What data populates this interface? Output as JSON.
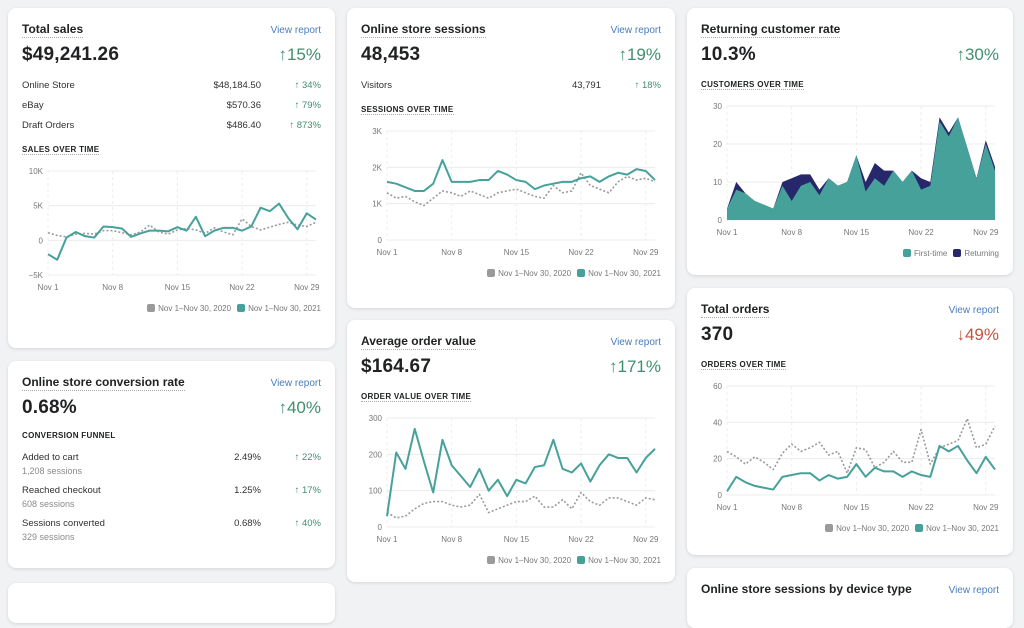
{
  "colors": {
    "primary": "#47a19b",
    "comparison": "#9a9a9a",
    "returning": "#27276b",
    "up": "#3f8f6f",
    "down": "#c2543f",
    "link": "#4a7dbd"
  },
  "legend_2020": "Nov 1–Nov 30, 2020",
  "legend_2021": "Nov 1–Nov 30, 2021",
  "x_ticks": [
    "Nov 1",
    "Nov 8",
    "Nov 15",
    "Nov 22",
    "Nov 29"
  ],
  "total_sales": {
    "title": "Total sales",
    "link": "View report",
    "value": "$49,241.26",
    "change": "↑15%",
    "rows": [
      {
        "label": "Online Store",
        "value": "$48,184.50",
        "change": "↑ 34%"
      },
      {
        "label": "eBay",
        "value": "$570.36",
        "change": "↑ 79%"
      },
      {
        "label": "Draft Orders",
        "value": "$486.40",
        "change": "↑ 873%"
      }
    ],
    "section": "SALES OVER TIME"
  },
  "conversion": {
    "title": "Online store conversion rate",
    "link": "View report",
    "value": "0.68%",
    "change": "↑40%",
    "section": "CONVERSION FUNNEL",
    "rows": [
      {
        "label": "Added to cart",
        "sub": "1,208 sessions",
        "value": "2.49%",
        "change": "↑ 22%"
      },
      {
        "label": "Reached checkout",
        "sub": "608 sessions",
        "value": "1.25%",
        "change": "↑ 17%"
      },
      {
        "label": "Sessions converted",
        "sub": "329 sessions",
        "value": "0.68%",
        "change": "↑ 40%"
      }
    ]
  },
  "sessions": {
    "title": "Online store sessions",
    "link": "View report",
    "value": "48,453",
    "change": "↑19%",
    "rows": [
      {
        "label": "Visitors",
        "value": "43,791",
        "change": "↑ 18%"
      }
    ],
    "section": "SESSIONS OVER TIME"
  },
  "aov": {
    "title": "Average order value",
    "link": "View report",
    "value": "$164.67",
    "change": "↑171%",
    "section": "ORDER VALUE OVER TIME"
  },
  "returning": {
    "title": "Returning customer rate",
    "value": "10.3%",
    "change": "↑30%",
    "section": "CUSTOMERS OVER TIME",
    "legend_first": "First-time",
    "legend_returning": "Returning"
  },
  "orders": {
    "title": "Total orders",
    "link": "View report",
    "value": "370",
    "change": "↓49%",
    "section": "ORDERS OVER TIME"
  },
  "device": {
    "title": "Online store sessions by device type",
    "link": "View report"
  },
  "chart_data": [
    {
      "id": "sales",
      "type": "line",
      "ylim": [
        -5,
        10
      ],
      "yticks": [
        "−5K",
        "0",
        "5K",
        "10K"
      ],
      "ytick_values": [
        -5,
        0,
        5,
        10
      ],
      "unit": "K",
      "series": [
        {
          "name": "Nov 1–Nov 30, 2020",
          "dashed": true,
          "values": [
            1.1,
            0.7,
            0.5,
            0.9,
            1,
            0.9,
            1.4,
            1.4,
            1.1,
            0.8,
            1.2,
            2.2,
            1.2,
            0.9,
            1.5,
            1.7,
            1.5,
            1,
            1.8,
            1.2,
            0.8,
            3.1,
            2,
            1.5,
            1.9,
            2.3,
            2.6,
            2.2,
            2,
            2.6
          ]
        },
        {
          "name": "Nov 1–Nov 30, 2021",
          "values": [
            -2,
            -2.8,
            0.4,
            1.2,
            0.6,
            0.4,
            2,
            1.9,
            1.7,
            0.5,
            1,
            1.4,
            1.4,
            1.3,
            1.9,
            1.4,
            3.4,
            0.6,
            1.4,
            1.8,
            1.8,
            1.4,
            2,
            4.7,
            4.2,
            5.3,
            3.2,
            1.6,
            3.9,
            3
          ]
        }
      ]
    },
    {
      "id": "sessions",
      "type": "line",
      "ylim": [
        0,
        3
      ],
      "yticks": [
        "0",
        "1K",
        "2K",
        "3K"
      ],
      "ytick_values": [
        0,
        1,
        2,
        3
      ],
      "unit": "K",
      "series": [
        {
          "name": "Nov 1–Nov 30, 2020",
          "dashed": true,
          "values": [
            1.3,
            1.15,
            1.2,
            1.05,
            0.95,
            1.15,
            1.35,
            1.3,
            1.2,
            1.35,
            1.25,
            1.15,
            1.3,
            1.35,
            1.4,
            1.3,
            1.2,
            1.15,
            1.5,
            1.3,
            1.35,
            1.85,
            1.5,
            1.4,
            1.3,
            1.6,
            1.75,
            1.65,
            1.7,
            1.6
          ]
        },
        {
          "name": "Nov 1–Nov 30, 2021",
          "values": [
            1.6,
            1.55,
            1.45,
            1.35,
            1.35,
            1.55,
            2.2,
            1.6,
            1.6,
            1.6,
            1.65,
            1.65,
            1.9,
            1.8,
            1.65,
            1.6,
            1.4,
            1.5,
            1.55,
            1.6,
            1.6,
            1.7,
            1.75,
            1.6,
            1.75,
            1.85,
            1.8,
            1.95,
            1.9,
            1.65
          ]
        }
      ]
    },
    {
      "id": "aov",
      "type": "line",
      "ylim": [
        0,
        300
      ],
      "yticks": [
        "0",
        "100",
        "200",
        "300"
      ],
      "ytick_values": [
        0,
        100,
        200,
        300
      ],
      "series": [
        {
          "name": "Nov 1–Nov 30, 2020",
          "dashed": true,
          "values": [
            40,
            25,
            30,
            50,
            65,
            70,
            70,
            60,
            55,
            60,
            90,
            40,
            50,
            60,
            70,
            70,
            85,
            55,
            55,
            75,
            50,
            95,
            70,
            60,
            80,
            80,
            70,
            60,
            80,
            75
          ]
        },
        {
          "name": "Nov 1–Nov 30, 2021",
          "values": [
            30,
            205,
            160,
            270,
            180,
            95,
            240,
            170,
            140,
            110,
            160,
            100,
            130,
            85,
            130,
            120,
            165,
            170,
            240,
            160,
            150,
            175,
            125,
            170,
            200,
            190,
            190,
            150,
            190,
            215
          ]
        }
      ]
    },
    {
      "id": "customers",
      "type": "area",
      "stacked": true,
      "ylim": [
        0,
        30
      ],
      "yticks": [
        "0",
        "10",
        "20",
        "30"
      ],
      "ytick_values": [
        0,
        10,
        20,
        30
      ],
      "series": [
        {
          "name": "First-time",
          "values": [
            3,
            8,
            7,
            5,
            4,
            3,
            9,
            5,
            9,
            10,
            6.5,
            11,
            9,
            10,
            17,
            7.5,
            11,
            9,
            13,
            10,
            13,
            8,
            9,
            26,
            22,
            27,
            19,
            11,
            20,
            13
          ]
        },
        {
          "name": "Returning",
          "values": [
            0,
            2,
            0,
            0,
            0,
            0,
            1,
            6,
            3,
            2,
            1.5,
            0,
            0,
            0,
            0,
            2.5,
            4,
            4,
            0,
            0,
            0,
            3,
            1,
            1,
            1,
            0,
            0,
            0,
            1,
            1
          ]
        }
      ]
    },
    {
      "id": "orders",
      "type": "line",
      "ylim": [
        0,
        60
      ],
      "yticks": [
        "0",
        "20",
        "40",
        "60"
      ],
      "ytick_values": [
        0,
        20,
        40,
        60
      ],
      "series": [
        {
          "name": "Nov 1–Nov 30, 2020",
          "dashed": true,
          "values": [
            24,
            21,
            17,
            21,
            18,
            14,
            23,
            28,
            24,
            26,
            29,
            22,
            24,
            12,
            26,
            25,
            15,
            18,
            24,
            18,
            18,
            36,
            17,
            26,
            28,
            30,
            42,
            26,
            28,
            38
          ]
        },
        {
          "name": "Nov 1–Nov 30, 2021",
          "values": [
            2,
            10,
            7,
            5,
            4,
            3,
            10,
            11,
            12,
            12,
            8,
            11,
            9,
            10,
            17,
            10,
            15,
            13,
            13,
            10,
            13,
            11,
            10,
            27,
            24,
            27,
            19,
            12,
            21,
            14
          ]
        }
      ]
    }
  ]
}
